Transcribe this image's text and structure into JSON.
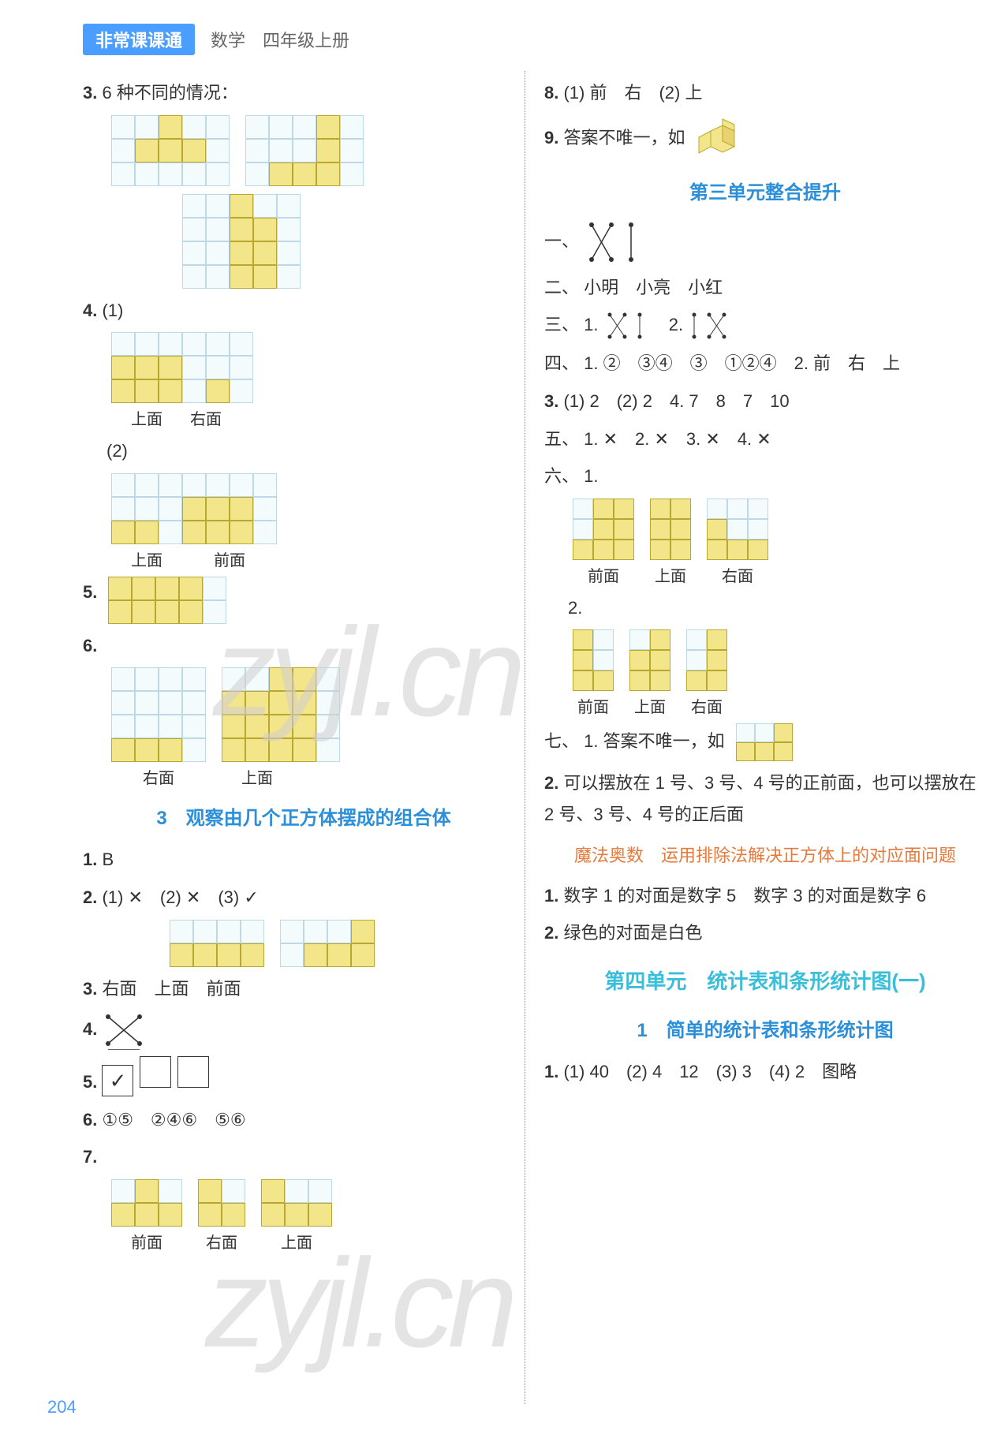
{
  "header": {
    "badge": "非常课课通",
    "sub": "数学　四年级上册"
  },
  "page_number": "204",
  "colors": {
    "blue": "#2b8fd9",
    "cyan": "#3bbfd9",
    "red": "#e67a3c",
    "cell_fill": "#f3e58a",
    "cell_border": "#b8a832",
    "grid_bg": "#f4fbfd",
    "grid_border": "#bfd8e8",
    "text": "#333333",
    "watermark": "#cfcfcf",
    "badge_bg": "#4a9eff"
  },
  "left": {
    "q3": {
      "label": "3.",
      "text": "6 种不同的情况：",
      "shapes": [
        {
          "rows": 3,
          "cols": 5,
          "fill": [
            [
              0,
              2
            ],
            [
              1,
              1
            ],
            [
              1,
              2
            ],
            [
              1,
              3
            ]
          ]
        },
        {
          "rows": 3,
          "cols": 5,
          "fill": [
            [
              0,
              3
            ],
            [
              1,
              3
            ],
            [
              2,
              1
            ],
            [
              2,
              2
            ],
            [
              2,
              3
            ]
          ]
        },
        {
          "rows": 4,
          "cols": 5,
          "fill": [
            [
              0,
              2
            ],
            [
              1,
              2
            ],
            [
              1,
              3
            ],
            [
              2,
              2
            ],
            [
              2,
              3
            ],
            [
              3,
              2
            ],
            [
              3,
              3
            ]
          ]
        }
      ]
    },
    "q4": {
      "label": "4.",
      "p1": "(1)",
      "p2": "(2)",
      "shape1": {
        "rows": 3,
        "cols": 6,
        "fill": [
          [
            1,
            0
          ],
          [
            1,
            1
          ],
          [
            1,
            2
          ],
          [
            2,
            0
          ],
          [
            2,
            1
          ],
          [
            2,
            2
          ],
          [
            2,
            4
          ]
        ],
        "labels": [
          "上面",
          "右面"
        ],
        "label_w": [
          90,
          60
        ]
      },
      "shape2": {
        "rows": 3,
        "cols": 7,
        "fill": [
          [
            2,
            0
          ],
          [
            2,
            1
          ],
          [
            1,
            3
          ],
          [
            1,
            4
          ],
          [
            1,
            5
          ],
          [
            2,
            3
          ],
          [
            2,
            4
          ],
          [
            2,
            5
          ]
        ],
        "labels": [
          "上面",
          "前面"
        ],
        "label_w": [
          90,
          120
        ]
      }
    },
    "q5": {
      "label": "5.",
      "shape": {
        "rows": 2,
        "cols": 5,
        "fill": [
          [
            0,
            0
          ],
          [
            0,
            1
          ],
          [
            0,
            2
          ],
          [
            0,
            3
          ],
          [
            1,
            0
          ],
          [
            1,
            1
          ],
          [
            1,
            2
          ],
          [
            1,
            3
          ]
        ]
      }
    },
    "q6": {
      "label": "6.",
      "shapeA": {
        "rows": 4,
        "cols": 4,
        "fill": [
          [
            3,
            0
          ],
          [
            3,
            1
          ],
          [
            3,
            2
          ]
        ]
      },
      "shapeB": {
        "rows": 4,
        "cols": 5,
        "fill": [
          [
            0,
            2
          ],
          [
            0,
            3
          ],
          [
            1,
            0
          ],
          [
            1,
            1
          ],
          [
            1,
            2
          ],
          [
            1,
            3
          ],
          [
            2,
            0
          ],
          [
            2,
            1
          ],
          [
            2,
            2
          ],
          [
            2,
            3
          ],
          [
            3,
            0
          ],
          [
            3,
            1
          ],
          [
            3,
            2
          ],
          [
            3,
            3
          ]
        ]
      },
      "labels": [
        "右面",
        "上面"
      ],
      "label_w": [
        120,
        130
      ]
    },
    "section3": "3　观察由几个正方体摆成的组合体",
    "s3q1": {
      "label": "1.",
      "text": "B"
    },
    "s3q2": {
      "label": "2.",
      "text": "(1) ✕　(2) ✕　(3) ✓",
      "shapeA": {
        "rows": 2,
        "cols": 4,
        "fill": [
          [
            1,
            0
          ],
          [
            1,
            1
          ],
          [
            1,
            2
          ],
          [
            1,
            3
          ]
        ]
      },
      "shapeB": {
        "rows": 2,
        "cols": 4,
        "fill": [
          [
            0,
            3
          ],
          [
            1,
            1
          ],
          [
            1,
            2
          ],
          [
            1,
            3
          ]
        ]
      }
    },
    "s3q3": {
      "label": "3.",
      "text": "右面　上面　前面"
    },
    "s3q4": {
      "label": "4."
    },
    "s3q5": {
      "label": "5.",
      "boxes": [
        "✓",
        "",
        ""
      ]
    },
    "s3q6": {
      "label": "6.",
      "text": "①⑤　②④⑥　⑤⑥"
    },
    "s3q7": {
      "label": "7.",
      "shapes": [
        {
          "rows": 2,
          "cols": 3,
          "fill": [
            [
              0,
              1
            ],
            [
              1,
              0
            ],
            [
              1,
              1
            ],
            [
              1,
              2
            ]
          ],
          "label": "前面"
        },
        {
          "rows": 2,
          "cols": 2,
          "fill": [
            [
              0,
              0
            ],
            [
              1,
              0
            ],
            [
              1,
              1
            ]
          ],
          "label": "右面"
        },
        {
          "rows": 2,
          "cols": 3,
          "fill": [
            [
              0,
              0
            ],
            [
              1,
              0
            ],
            [
              1,
              1
            ],
            [
              1,
              2
            ]
          ],
          "label": "上面"
        }
      ]
    }
  },
  "right": {
    "q8": {
      "label": "8.",
      "text": "(1) 前　右　(2) 上"
    },
    "q9": {
      "label": "9.",
      "text": "答案不唯一，如"
    },
    "unit3": "第三单元整合提升",
    "u3_1": {
      "label": "一、"
    },
    "u3_2": {
      "label": "二、",
      "text": "小明　小亮　小红"
    },
    "u3_3": {
      "label": "三、",
      "text": "1.　　　　2."
    },
    "u3_4": {
      "label": "四、",
      "text": "1. ②　③④　③　①②④　2. 前　右　上"
    },
    "u3_4b": {
      "label": "3.",
      "text": "(1) 2　(2) 2　4. 7　8　7　10"
    },
    "u3_5": {
      "label": "五、",
      "text": "1. ✕　2. ✕　3. ✕　4. ✕"
    },
    "u3_6": {
      "label": "六、",
      "text": "1.",
      "shapes": [
        {
          "rows": 3,
          "cols": 3,
          "fill": [
            [
              0,
              1
            ],
            [
              0,
              2
            ],
            [
              1,
              1
            ],
            [
              1,
              2
            ],
            [
              2,
              0
            ],
            [
              2,
              1
            ],
            [
              2,
              2
            ]
          ],
          "label": "前面"
        },
        {
          "rows": 3,
          "cols": 2,
          "fill": [
            [
              0,
              0
            ],
            [
              0,
              1
            ],
            [
              1,
              0
            ],
            [
              1,
              1
            ],
            [
              2,
              0
            ],
            [
              2,
              1
            ]
          ],
          "label": "上面"
        },
        {
          "rows": 3,
          "cols": 3,
          "fill": [
            [
              1,
              0
            ],
            [
              2,
              0
            ],
            [
              2,
              1
            ],
            [
              2,
              2
            ]
          ],
          "label": "右面"
        }
      ],
      "q2label": "2.",
      "shapes2": [
        {
          "rows": 3,
          "cols": 2,
          "fill": [
            [
              0,
              0
            ],
            [
              1,
              0
            ],
            [
              2,
              0
            ],
            [
              2,
              1
            ]
          ],
          "label": "前面"
        },
        {
          "rows": 3,
          "cols": 2,
          "fill": [
            [
              0,
              1
            ],
            [
              1,
              0
            ],
            [
              1,
              1
            ],
            [
              2,
              0
            ],
            [
              2,
              1
            ]
          ],
          "label": "上面"
        },
        {
          "rows": 3,
          "cols": 2,
          "fill": [
            [
              0,
              1
            ],
            [
              1,
              1
            ],
            [
              2,
              0
            ],
            [
              2,
              1
            ]
          ],
          "label": "右面"
        }
      ]
    },
    "u3_7": {
      "label": "七、",
      "text": "1. 答案不唯一，如",
      "shape": {
        "rows": 2,
        "cols": 3,
        "fill": [
          [
            0,
            2
          ],
          [
            1,
            0
          ],
          [
            1,
            1
          ],
          [
            1,
            2
          ]
        ]
      }
    },
    "u3_7b": {
      "label": "2.",
      "text": "可以摆放在 1 号、3 号、4 号的正前面，也可以摆放在 2 号、3 号、4 号的正后面"
    },
    "magic": "魔法奥数　运用排除法解决正方体上的对应面问题",
    "mq1": {
      "label": "1.",
      "text": "数字 1 的对面是数字 5　数字 3 的对面是数字 6"
    },
    "mq2": {
      "label": "2.",
      "text": "绿色的对面是白色"
    },
    "unit4": "第四单元　统计表和条形统计图(一)",
    "sec41": "1　简单的统计表和条形统计图",
    "s4q1": {
      "label": "1.",
      "text": "(1) 40　(2) 4　12　(3) 3　(4) 2　图略"
    }
  },
  "watermark": "zyjl.cn"
}
